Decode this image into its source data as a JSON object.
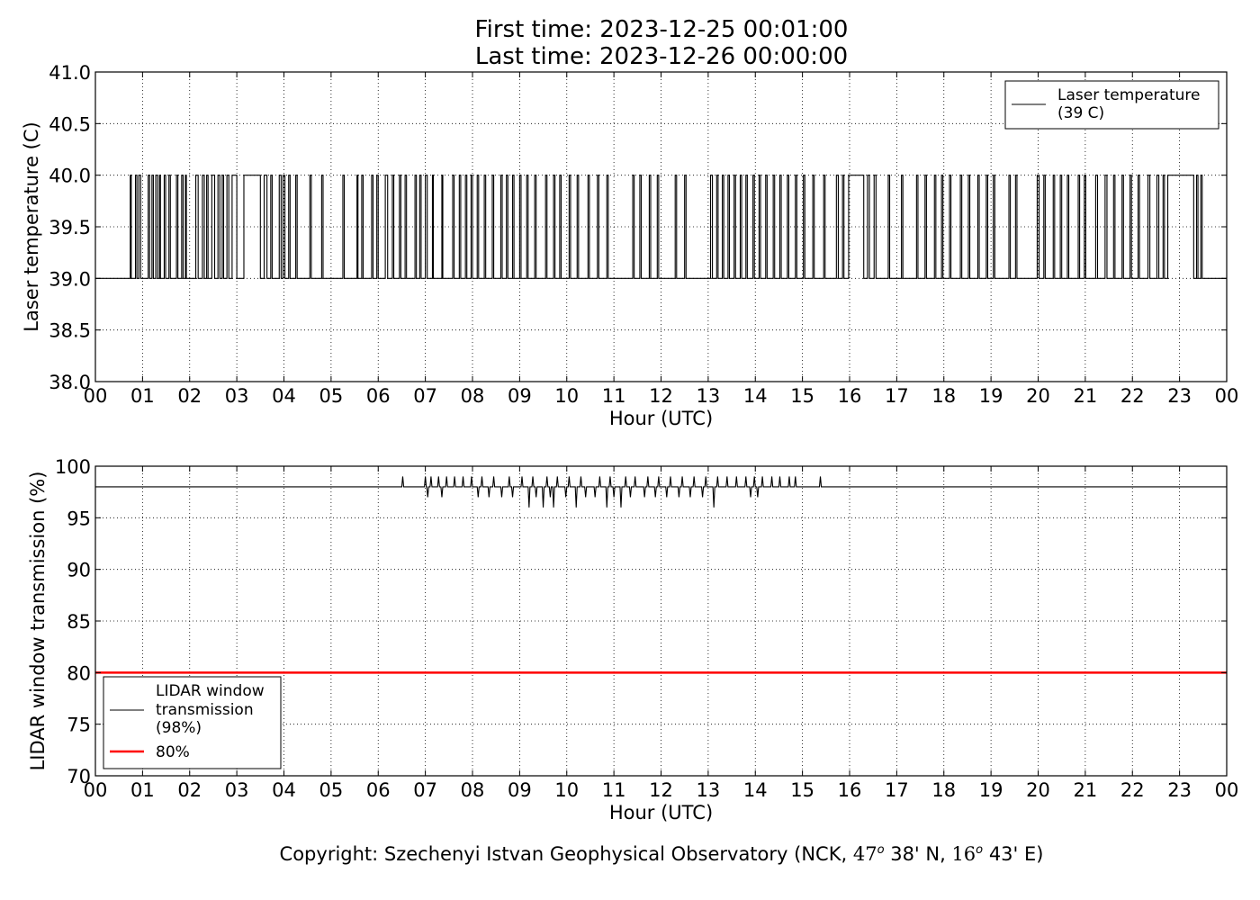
{
  "header": {
    "first_time": "First time: 2023-12-25 00:01:00",
    "last_time": "Last time: 2023-12-26 00:00:00"
  },
  "footer": {
    "copyright_prefix": "Copyright: Szechenyi Istvan Geophysical Observatory (NCK, ",
    "lat_deg": "47",
    "lat_min": " 38' N, ",
    "lon_deg": "16",
    "lon_min": " 43' E)",
    "degree_mark": "o"
  },
  "chart_data": [
    {
      "type": "line",
      "ylabel": "Laser temperature (C)",
      "xlabel": "Hour (UTC)",
      "xlim": [
        0,
        24
      ],
      "ylim": [
        38.0,
        41.0
      ],
      "xticks": [
        "00",
        "01",
        "02",
        "03",
        "04",
        "05",
        "06",
        "07",
        "08",
        "09",
        "10",
        "11",
        "12",
        "13",
        "14",
        "15",
        "16",
        "17",
        "18",
        "19",
        "20",
        "21",
        "22",
        "23",
        "00"
      ],
      "yticks": [
        "38.0",
        "38.5",
        "39.0",
        "39.5",
        "40.0",
        "40.5",
        "41.0"
      ],
      "ytick_values": [
        38.0,
        38.5,
        39.0,
        39.5,
        40.0,
        40.5,
        41.0
      ],
      "grid": true,
      "legend_position": "top-right",
      "series": [
        {
          "name": "Laser temperature\n(39 C)",
          "color": "#000000",
          "baseline": 39.0,
          "high": 40.0,
          "high_intervals": [
            [
              0.74,
              0.76
            ],
            [
              0.85,
              0.88
            ],
            [
              0.92,
              0.96
            ],
            [
              1.12,
              1.15
            ],
            [
              1.2,
              1.23
            ],
            [
              1.28,
              1.32
            ],
            [
              1.36,
              1.38
            ],
            [
              1.46,
              1.49
            ],
            [
              1.56,
              1.59
            ],
            [
              1.72,
              1.75
            ],
            [
              1.83,
              1.86
            ],
            [
              1.91,
              1.93
            ],
            [
              2.13,
              2.18
            ],
            [
              2.27,
              2.31
            ],
            [
              2.36,
              2.39
            ],
            [
              2.47,
              2.53
            ],
            [
              2.6,
              2.64
            ],
            [
              2.69,
              2.72
            ],
            [
              2.79,
              2.83
            ],
            [
              2.9,
              3.0
            ],
            [
              3.15,
              3.5
            ],
            [
              3.58,
              3.64
            ],
            [
              3.72,
              3.75
            ],
            [
              3.9,
              3.94
            ],
            [
              3.98,
              4.02
            ],
            [
              4.1,
              4.13
            ],
            [
              4.25,
              4.28
            ],
            [
              4.55,
              4.58
            ],
            [
              4.8,
              4.83
            ],
            [
              5.25,
              5.28
            ],
            [
              5.55,
              5.57
            ],
            [
              5.65,
              5.68
            ],
            [
              5.86,
              5.89
            ],
            [
              5.97,
              6.0
            ],
            [
              6.15,
              6.2
            ],
            [
              6.3,
              6.33
            ],
            [
              6.45,
              6.48
            ],
            [
              6.57,
              6.6
            ],
            [
              6.78,
              6.81
            ],
            [
              6.88,
              6.91
            ],
            [
              7.0,
              7.04
            ],
            [
              7.15,
              7.17
            ],
            [
              7.35,
              7.37
            ],
            [
              7.58,
              7.61
            ],
            [
              7.72,
              7.75
            ],
            [
              7.85,
              7.88
            ],
            [
              7.97,
              8.0
            ],
            [
              8.1,
              8.13
            ],
            [
              8.25,
              8.28
            ],
            [
              8.42,
              8.45
            ],
            [
              8.6,
              8.63
            ],
            [
              8.72,
              8.75
            ],
            [
              8.85,
              8.88
            ],
            [
              9.0,
              9.03
            ],
            [
              9.15,
              9.18
            ],
            [
              9.32,
              9.35
            ],
            [
              9.55,
              9.58
            ],
            [
              9.72,
              9.75
            ],
            [
              9.85,
              9.88
            ],
            [
              10.05,
              10.08
            ],
            [
              10.22,
              10.25
            ],
            [
              10.45,
              10.48
            ],
            [
              10.65,
              10.68
            ],
            [
              10.85,
              10.88
            ],
            [
              11.4,
              11.43
            ],
            [
              11.55,
              11.58
            ],
            [
              11.75,
              11.78
            ],
            [
              11.92,
              11.95
            ],
            [
              12.3,
              12.33
            ],
            [
              12.5,
              12.53
            ],
            [
              13.05,
              13.09
            ],
            [
              13.18,
              13.21
            ],
            [
              13.3,
              13.33
            ],
            [
              13.42,
              13.45
            ],
            [
              13.55,
              13.58
            ],
            [
              13.68,
              13.71
            ],
            [
              13.8,
              13.83
            ],
            [
              13.95,
              13.98
            ],
            [
              14.08,
              14.11
            ],
            [
              14.22,
              14.25
            ],
            [
              14.38,
              14.41
            ],
            [
              14.52,
              14.55
            ],
            [
              14.68,
              14.71
            ],
            [
              14.85,
              14.88
            ],
            [
              15.02,
              15.05
            ],
            [
              15.22,
              15.25
            ],
            [
              15.45,
              15.48
            ],
            [
              15.72,
              15.76
            ],
            [
              15.85,
              15.88
            ],
            [
              15.98,
              16.3
            ],
            [
              16.38,
              16.42
            ],
            [
              16.52,
              16.56
            ],
            [
              16.82,
              16.85
            ],
            [
              17.1,
              17.13
            ],
            [
              17.42,
              17.45
            ],
            [
              17.6,
              17.63
            ],
            [
              17.8,
              17.83
            ],
            [
              17.95,
              17.98
            ],
            [
              18.12,
              18.15
            ],
            [
              18.35,
              18.38
            ],
            [
              18.52,
              18.55
            ],
            [
              18.72,
              18.75
            ],
            [
              18.9,
              18.93
            ],
            [
              19.05,
              19.08
            ],
            [
              19.38,
              19.41
            ],
            [
              19.52,
              19.55
            ],
            [
              19.98,
              20.02
            ],
            [
              20.12,
              20.15
            ],
            [
              20.32,
              20.35
            ],
            [
              20.47,
              20.5
            ],
            [
              20.62,
              20.65
            ],
            [
              20.85,
              20.88
            ],
            [
              20.98,
              21.01
            ],
            [
              21.22,
              21.26
            ],
            [
              21.42,
              21.46
            ],
            [
              21.6,
              21.63
            ],
            [
              21.78,
              21.81
            ],
            [
              21.95,
              21.98
            ],
            [
              22.12,
              22.15
            ],
            [
              22.33,
              22.37
            ],
            [
              22.52,
              22.56
            ],
            [
              22.65,
              22.68
            ],
            [
              22.75,
              23.3
            ],
            [
              23.36,
              23.39
            ],
            [
              23.45,
              23.48
            ]
          ]
        }
      ]
    },
    {
      "type": "line",
      "ylabel": "LIDAR window transmission (%)",
      "xlabel": "Hour (UTC)",
      "xlim": [
        0,
        24
      ],
      "ylim": [
        70,
        100
      ],
      "xticks": [
        "00",
        "01",
        "02",
        "03",
        "04",
        "05",
        "06",
        "07",
        "08",
        "09",
        "10",
        "11",
        "12",
        "13",
        "14",
        "15",
        "16",
        "17",
        "18",
        "19",
        "20",
        "21",
        "22",
        "23",
        "00"
      ],
      "yticks": [
        "70",
        "75",
        "80",
        "85",
        "90",
        "95",
        "100"
      ],
      "ytick_values": [
        70,
        75,
        80,
        85,
        90,
        95,
        100
      ],
      "grid": true,
      "legend_position": "bottom-left",
      "series": [
        {
          "name": "LIDAR window\ntransmission\n(98%)",
          "color": "#000000",
          "baseline": 98,
          "deviations": [
            [
              6.52,
              99
            ],
            [
              7.0,
              99
            ],
            [
              7.05,
              97
            ],
            [
              7.12,
              99
            ],
            [
              7.2,
              98
            ],
            [
              7.28,
              99
            ],
            [
              7.35,
              97
            ],
            [
              7.45,
              99
            ],
            [
              7.55,
              98
            ],
            [
              7.62,
              99
            ],
            [
              7.7,
              98
            ],
            [
              7.8,
              99
            ],
            [
              7.9,
              98
            ],
            [
              7.98,
              99
            ],
            [
              8.05,
              98
            ],
            [
              8.12,
              97
            ],
            [
              8.2,
              99
            ],
            [
              8.28,
              98
            ],
            [
              8.35,
              97
            ],
            [
              8.45,
              99
            ],
            [
              8.55,
              98
            ],
            [
              8.62,
              97
            ],
            [
              8.7,
              98
            ],
            [
              8.78,
              99
            ],
            [
              8.85,
              97
            ],
            [
              9.05,
              99
            ],
            [
              9.12,
              98
            ],
            [
              9.2,
              96
            ],
            [
              9.28,
              99
            ],
            [
              9.35,
              97
            ],
            [
              9.42,
              98
            ],
            [
              9.5,
              96
            ],
            [
              9.58,
              99
            ],
            [
              9.65,
              97
            ],
            [
              9.72,
              96
            ],
            [
              9.8,
              99
            ],
            [
              9.9,
              98
            ],
            [
              9.98,
              97
            ],
            [
              10.05,
              99
            ],
            [
              10.12,
              98
            ],
            [
              10.2,
              96
            ],
            [
              10.3,
              99
            ],
            [
              10.4,
              97
            ],
            [
              10.5,
              98
            ],
            [
              10.6,
              97
            ],
            [
              10.7,
              99
            ],
            [
              10.78,
              98
            ],
            [
              10.85,
              96
            ],
            [
              10.92,
              99
            ],
            [
              11.0,
              97
            ],
            [
              11.08,
              98
            ],
            [
              11.15,
              96
            ],
            [
              11.25,
              99
            ],
            [
              11.35,
              97
            ],
            [
              11.45,
              99
            ],
            [
              11.55,
              98
            ],
            [
              11.65,
              97
            ],
            [
              11.72,
              99
            ],
            [
              11.8,
              98
            ],
            [
              11.88,
              97
            ],
            [
              11.95,
              99
            ],
            [
              12.05,
              98
            ],
            [
              12.12,
              97
            ],
            [
              12.2,
              99
            ],
            [
              12.3,
              98
            ],
            [
              12.38,
              97
            ],
            [
              12.45,
              99
            ],
            [
              12.55,
              98
            ],
            [
              12.62,
              97
            ],
            [
              12.7,
              99
            ],
            [
              12.8,
              98
            ],
            [
              12.88,
              97
            ],
            [
              12.95,
              99
            ],
            [
              13.05,
              98
            ],
            [
              13.12,
              96
            ],
            [
              13.2,
              99
            ],
            [
              13.3,
              98
            ],
            [
              13.4,
              99
            ],
            [
              13.5,
              98
            ],
            [
              13.6,
              99
            ],
            [
              13.7,
              98
            ],
            [
              13.8,
              99
            ],
            [
              13.9,
              97
            ],
            [
              13.98,
              99
            ],
            [
              14.05,
              97
            ],
            [
              14.15,
              99
            ],
            [
              14.25,
              98
            ],
            [
              14.35,
              99
            ],
            [
              14.45,
              98
            ],
            [
              14.52,
              99
            ],
            [
              14.62,
              98
            ],
            [
              14.72,
              99
            ],
            [
              14.85,
              99
            ],
            [
              14.9,
              98
            ],
            [
              15.38,
              99
            ]
          ]
        },
        {
          "name": "80%",
          "color": "#ff0000",
          "value": 80
        }
      ]
    }
  ]
}
